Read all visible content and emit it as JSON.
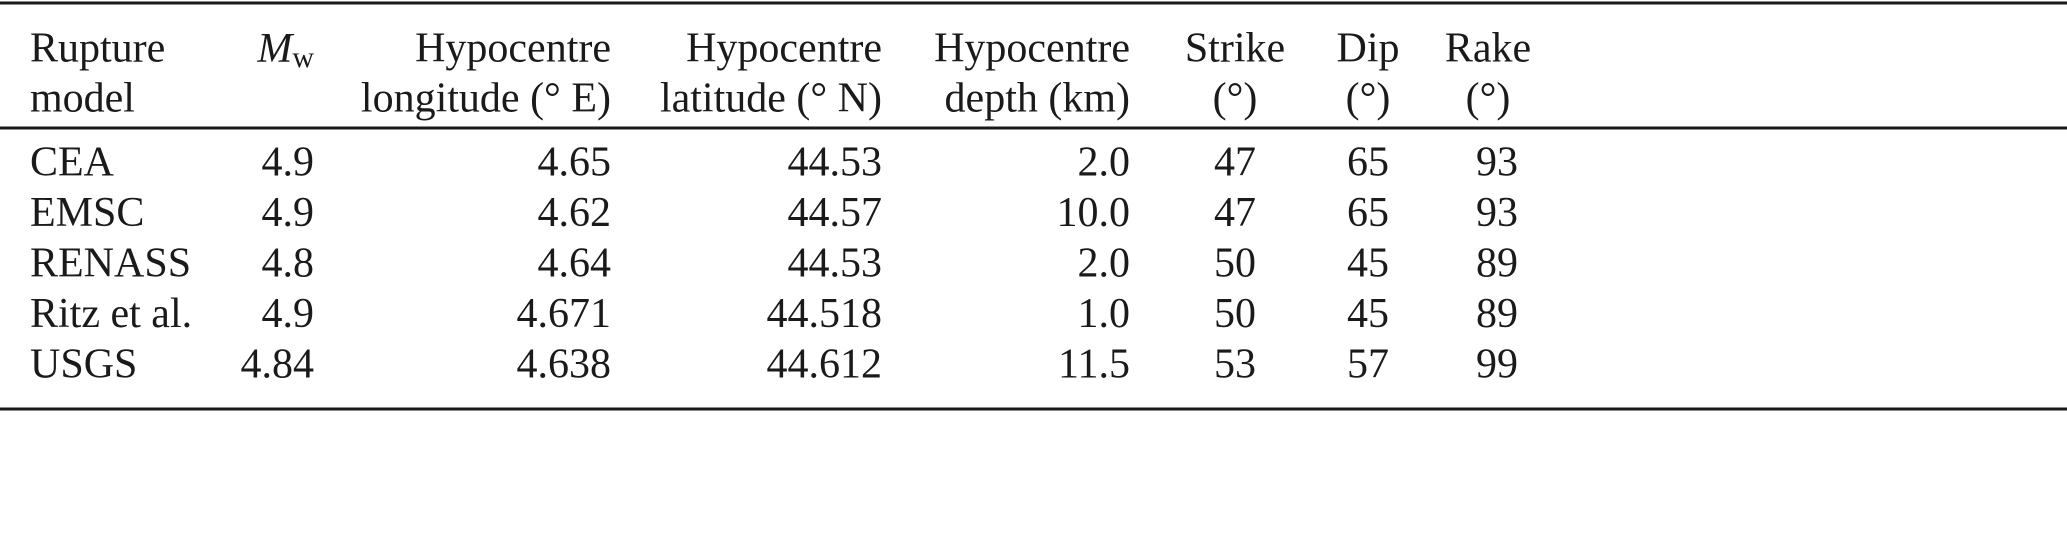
{
  "table": {
    "header": [
      [
        "Rupture",
        "model"
      ],
      {
        "symbol": "M",
        "subscript": "w"
      },
      [
        "Hypocentre",
        "longitude (° E)"
      ],
      [
        "Hypocentre",
        "latitude (° N)"
      ],
      [
        "Hypocentre",
        "depth (km)"
      ],
      [
        "Strike",
        "(°)"
      ],
      [
        "Dip",
        "(°)"
      ],
      [
        "Rake",
        "(°)"
      ]
    ],
    "rows": [
      [
        "CEA",
        "4.9",
        "4.65",
        "44.53",
        "2.0",
        "47",
        "65",
        "93"
      ],
      [
        "EMSC",
        "4.9",
        "4.62",
        "44.57",
        "10.0",
        "47",
        "65",
        "93"
      ],
      [
        "RENASS",
        "4.8",
        "4.64",
        "44.53",
        "2.0",
        "50",
        "45",
        "89"
      ],
      [
        "Ritz et al.",
        "4.9",
        "4.671",
        "44.518",
        "1.0",
        "50",
        "45",
        "89"
      ],
      [
        "USGS",
        "4.84",
        "4.638",
        "44.612",
        "11.5",
        "53",
        "57",
        "99"
      ]
    ]
  }
}
